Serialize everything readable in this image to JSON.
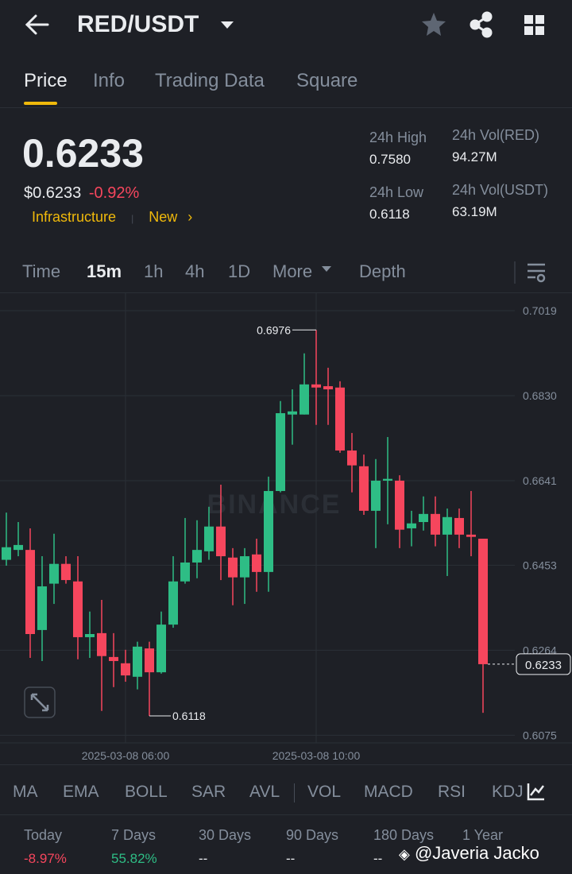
{
  "header": {
    "pair": "RED/USDT"
  },
  "tabs": [
    "Price",
    "Info",
    "Trading Data",
    "Square"
  ],
  "price": {
    "last": "0.6233",
    "usd": "$0.6233",
    "change": "-0.92%",
    "tags": [
      "Infrastructure",
      "New"
    ]
  },
  "stats": [
    {
      "label": "24h High",
      "value": "0.7580"
    },
    {
      "label": "24h Vol(RED)",
      "value": "94.27M"
    },
    {
      "label": "24h Low",
      "value": "0.6118"
    },
    {
      "label": "24h Vol(USDT)",
      "value": "63.19M"
    }
  ],
  "timeframes": [
    "Time",
    "15m",
    "1h",
    "4h",
    "1D",
    "More",
    "Depth"
  ],
  "chart_data": {
    "type": "candlestick",
    "watermark": "BINANCE",
    "categories": [
      null,
      null,
      null,
      null,
      null,
      null,
      null,
      null,
      null,
      null,
      "2025-03-08 06:00",
      null,
      null,
      null,
      null,
      null,
      null,
      null,
      null,
      null,
      null,
      null,
      null,
      null,
      null,
      null,
      "2025-03-08 10:00",
      null,
      null,
      null,
      null,
      null,
      null,
      null,
      null,
      null,
      null,
      null,
      null,
      null,
      null
    ],
    "open": [
      0.6465,
      0.6487,
      0.6487,
      0.6309,
      0.6412,
      0.6456,
      0.6417,
      0.6293,
      0.6302,
      0.6249,
      0.6235,
      0.6205,
      0.6268,
      0.6215,
      0.6321,
      0.6417,
      0.6459,
      0.6484,
      0.6539,
      0.647,
      0.6426,
      0.6477,
      0.6438,
      0.6618,
      0.6788,
      0.6788,
      0.6855,
      0.6851,
      0.6848,
      0.6708,
      0.6673,
      0.6574,
      0.6641,
      0.6641,
      0.6535,
      0.6549,
      0.6567,
      0.6521,
      0.6558,
      0.6521,
      0.6512
    ],
    "high": [
      0.657,
      0.6549,
      0.6535,
      0.6473,
      0.6523,
      0.6473,
      0.6473,
      0.635,
      0.6376,
      0.6302,
      0.6265,
      0.6283,
      0.6283,
      0.635,
      0.6473,
      0.6558,
      0.6553,
      0.6583,
      0.6632,
      0.6491,
      0.6491,
      0.6512,
      0.665,
      0.6818,
      0.6844,
      0.6924,
      0.6976,
      0.6892,
      0.6862,
      0.6747,
      0.6699,
      0.6689,
      0.6738,
      0.6653,
      0.6574,
      0.6606,
      0.6606,
      0.6579,
      0.6579,
      0.6618,
      0.6512
    ],
    "low": [
      0.6452,
      0.6473,
      0.6247,
      0.624,
      0.6367,
      0.6412,
      0.6244,
      0.6247,
      0.6129,
      0.6182,
      0.6194,
      0.6177,
      0.6118,
      0.6212,
      0.6314,
      0.6412,
      0.6424,
      0.6465,
      0.642,
      0.6364,
      0.6367,
      0.6394,
      0.6394,
      0.6615,
      0.6721,
      0.6788,
      0.6765,
      0.6765,
      0.6703,
      0.6615,
      0.6565,
      0.6491,
      0.6544,
      0.6491,
      0.6495,
      0.653,
      0.6495,
      0.6429,
      0.6491,
      0.6473,
      0.6125
    ],
    "close": [
      0.6493,
      0.6498,
      0.63,
      0.6406,
      0.6456,
      0.642,
      0.6293,
      0.63,
      0.6251,
      0.624,
      0.6208,
      0.6272,
      0.6215,
      0.6321,
      0.6417,
      0.6459,
      0.6487,
      0.6539,
      0.6473,
      0.6426,
      0.6473,
      0.6438,
      0.6618,
      0.6791,
      0.6795,
      0.6855,
      0.6848,
      0.6844,
      0.6708,
      0.6675,
      0.6574,
      0.6641,
      0.6645,
      0.6532,
      0.6546,
      0.6567,
      0.6521,
      0.656,
      0.6521,
      0.6516,
      0.6233
    ],
    "up_color": "#2ebd85",
    "down_color": "#f6465d",
    "ylim": [
      0.6058,
      0.7056
    ],
    "yticks": [
      0.7019,
      {
        "value": 0.683,
        "label": "0.6830"
      },
      0.6641,
      0.6453,
      0.6264,
      0.6075
    ],
    "grid": true
  },
  "indicators": [
    "MA",
    "EMA",
    "BOLL",
    "SAR",
    "AVL",
    "VOL",
    "MACD",
    "RSI",
    "KDJ"
  ],
  "performance": [
    {
      "label": "Today",
      "value": "-8.97%"
    },
    {
      "label": "7 Days",
      "value": "55.82%"
    },
    {
      "label": "30 Days",
      "value": "--"
    },
    {
      "label": "90 Days",
      "value": "--"
    },
    {
      "label": "180 Days",
      "value": "--"
    },
    {
      "label": "1 Year"
    }
  ],
  "credit": "@Javeria Jacko"
}
